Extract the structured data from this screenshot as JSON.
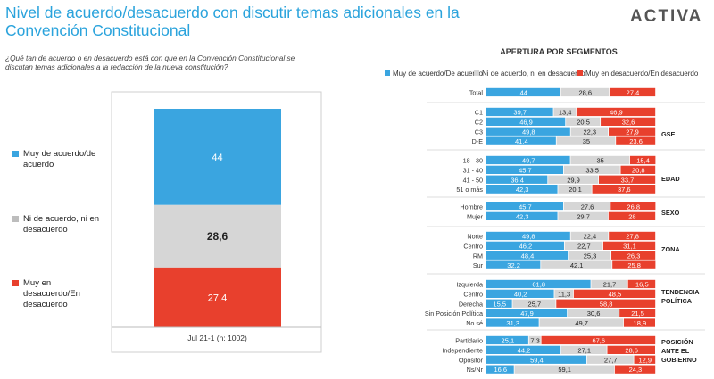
{
  "header": {
    "title": "Nivel de acuerdo/desacuerdo con discutir temas adicionales en la Convención Constitucional",
    "subtitle": "¿Qué tan de acuerdo o en desacuerdo está con que en la Convención Constitucional se discutan temas adicionales a la redacción de la nueva constitución?",
    "logo": "ACTIVA"
  },
  "colors": {
    "acuerdo": "#3aa5e0",
    "neutral": "#d6d6d6",
    "desacuerdo": "#e8402d"
  },
  "left_legend": [
    {
      "label": "Muy de acuerdo/de acuerdo",
      "color_key": "acuerdo"
    },
    {
      "label": "Ni de acuerdo, ni en desacuerdo",
      "color_key": "neutral"
    },
    {
      "label": "Muy en desacuerdo/En desacuerdo",
      "color_key": "desacuerdo"
    }
  ],
  "right_header": {
    "title": "APERTURA POR SEGMENTOS",
    "legend": [
      "Muy de acuerdo/De acuerdo",
      "Ni de acuerdo, ni en desacuerdo",
      "Muy en desacuerdo/En desacuerdo"
    ]
  },
  "chart_data": [
    {
      "type": "bar",
      "stacked": true,
      "categories": [
        "Jul 21-1 (n: 1002)"
      ],
      "series": [
        {
          "name": "Muy de acuerdo/de acuerdo",
          "values": [
            44
          ]
        },
        {
          "name": "Ni de acuerdo, ni en desacuerdo",
          "values": [
            28.6
          ]
        },
        {
          "name": "Muy en desacuerdo/En desacuerdo",
          "values": [
            27.4
          ]
        }
      ],
      "labels": [
        "44",
        "28,6",
        "27,4"
      ]
    },
    {
      "type": "bar",
      "orientation": "horizontal",
      "stacked": true,
      "title": "APERTURA POR SEGMENTOS",
      "series_names": [
        "Muy de acuerdo/De acuerdo",
        "Ni de acuerdo, ni en desacuerdo",
        "Muy en desacuerdo/En desacuerdo"
      ],
      "groups": [
        {
          "name": "",
          "rows": [
            {
              "label": "Total",
              "values": [
                44,
                28.6,
                27.4
              ],
              "labels": [
                "44",
                "28,6",
                "27,4"
              ]
            }
          ]
        },
        {
          "name": "GSE",
          "rows": [
            {
              "label": "C1",
              "values": [
                39.7,
                13.4,
                46.9
              ],
              "labels": [
                "39,7",
                "13,4",
                "46,9"
              ]
            },
            {
              "label": "C2",
              "values": [
                46.9,
                20.5,
                32.6
              ],
              "labels": [
                "46,9",
                "20,5",
                "32,6"
              ]
            },
            {
              "label": "C3",
              "values": [
                49.8,
                22.3,
                27.9
              ],
              "labels": [
                "49,8",
                "22,3",
                "27,9"
              ]
            },
            {
              "label": "D-E",
              "values": [
                41.4,
                35,
                23.6
              ],
              "labels": [
                "41,4",
                "35",
                "23,6"
              ]
            }
          ]
        },
        {
          "name": "EDAD",
          "rows": [
            {
              "label": "18 - 30",
              "values": [
                49.7,
                35,
                15.4
              ],
              "labels": [
                "49,7",
                "35",
                "15,4"
              ]
            },
            {
              "label": "31 - 40",
              "values": [
                45.7,
                33.5,
                20.8
              ],
              "labels": [
                "45,7",
                "33,5",
                "20,8"
              ]
            },
            {
              "label": "41 - 50",
              "values": [
                36.4,
                29.9,
                33.7
              ],
              "labels": [
                "36,4",
                "29,9",
                "33,7"
              ]
            },
            {
              "label": "51 o más",
              "values": [
                42.3,
                20.1,
                37.6
              ],
              "labels": [
                "42,3",
                "20,1",
                "37,6"
              ]
            }
          ]
        },
        {
          "name": "SEXO",
          "rows": [
            {
              "label": "Hombre",
              "values": [
                45.7,
                27.6,
                26.8
              ],
              "labels": [
                "45,7",
                "27,6",
                "26,8"
              ]
            },
            {
              "label": "Mujer",
              "values": [
                42.3,
                29.7,
                28
              ],
              "labels": [
                "42,3",
                "29,7",
                "28"
              ]
            }
          ]
        },
        {
          "name": "ZONA",
          "rows": [
            {
              "label": "Norte",
              "values": [
                49.8,
                22.4,
                27.8
              ],
              "labels": [
                "49,8",
                "22,4",
                "27,8"
              ]
            },
            {
              "label": "Centro",
              "values": [
                46.2,
                22.7,
                31.1
              ],
              "labels": [
                "46,2",
                "22,7",
                "31,1"
              ]
            },
            {
              "label": "RM",
              "values": [
                48.4,
                25.3,
                26.3
              ],
              "labels": [
                "48,4",
                "25,3",
                "26,3"
              ]
            },
            {
              "label": "Sur",
              "values": [
                32.2,
                42.1,
                25.8
              ],
              "labels": [
                "32,2",
                "42,1",
                "25,8"
              ]
            }
          ]
        },
        {
          "name": "TENDENCIA POLÍTICA",
          "rows": [
            {
              "label": "Izquierda",
              "values": [
                61.8,
                21.7,
                16.5
              ],
              "labels": [
                "61,8",
                "21,7",
                "16,5"
              ]
            },
            {
              "label": "Centro",
              "values": [
                40.2,
                11.3,
                48.5
              ],
              "labels": [
                "40,2",
                "11,3",
                "48,5"
              ]
            },
            {
              "label": "Derecha",
              "values": [
                15.5,
                25.7,
                58.8
              ],
              "labels": [
                "15,5",
                "25,7",
                "58,8"
              ]
            },
            {
              "label": "Sin Posición Política",
              "values": [
                47.9,
                30.6,
                21.5
              ],
              "labels": [
                "47,9",
                "30,6",
                "21,5"
              ]
            },
            {
              "label": "No sé",
              "values": [
                31.3,
                49.7,
                18.9
              ],
              "labels": [
                "31,3",
                "49,7",
                "18,9"
              ]
            }
          ]
        },
        {
          "name": "POSICIÓN ANTE EL GOBIERNO",
          "rows": [
            {
              "label": "Partidario",
              "values": [
                25.1,
                7.3,
                67.6
              ],
              "labels": [
                "25,1",
                "7,3",
                "67,6"
              ]
            },
            {
              "label": "Independiente",
              "values": [
                44.2,
                27.1,
                28.6
              ],
              "labels": [
                "44,2",
                "27,1",
                "28,6"
              ]
            },
            {
              "label": "Opositor",
              "values": [
                59.4,
                27.7,
                12.9
              ],
              "labels": [
                "59,4",
                "27,7",
                "12,9"
              ]
            },
            {
              "label": "Ns/Nr",
              "values": [
                16.6,
                59.1,
                24.3
              ],
              "labels": [
                "16,6",
                "59,1",
                "24,3"
              ]
            }
          ]
        }
      ]
    }
  ]
}
